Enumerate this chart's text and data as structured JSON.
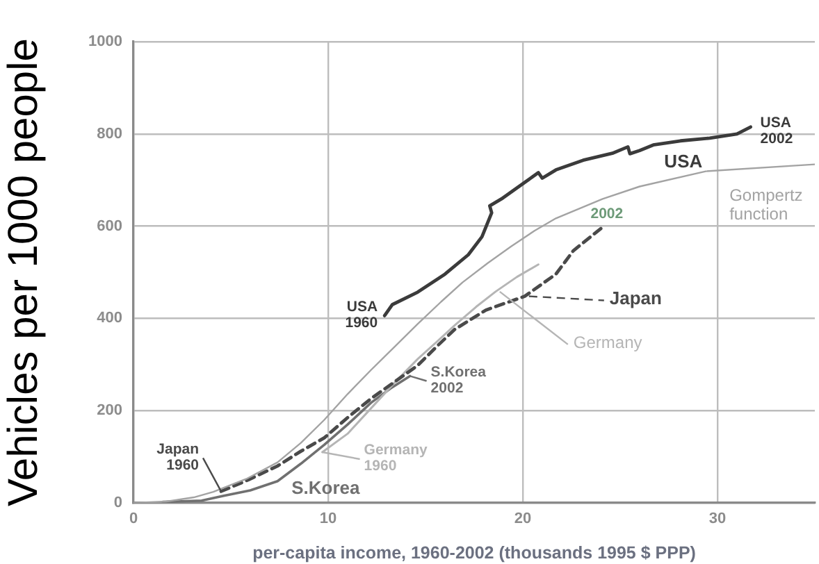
{
  "chart_data": {
    "type": "line",
    "xlabel": "per-capita income, 1960-2002 (thousands 1995 $ PPP)",
    "ylabel": "Vehicles per 1000 people",
    "xlim": [
      0,
      35
    ],
    "xticks": [
      0,
      10,
      20,
      30
    ],
    "ylim": [
      0,
      1000
    ],
    "yticks": [
      0,
      200,
      400,
      600,
      800,
      1000
    ],
    "grid": true,
    "marker": "none",
    "series": [
      {
        "name": "USA",
        "color": "#3b3b3b",
        "x": [
          12.9,
          13.3,
          14.6,
          16.0,
          17.2,
          17.9,
          18.4,
          18.3,
          18.9,
          19.7,
          20.5,
          20.8,
          21.0,
          21.7,
          23.1,
          24.6,
          25.4,
          25.5,
          26.0,
          26.7,
          28.1,
          29.6,
          31.0,
          31.7
        ],
        "values": [
          406,
          430,
          457,
          496,
          538,
          577,
          629,
          644,
          659,
          683,
          707,
          716,
          704,
          722,
          743,
          758,
          772,
          757,
          764,
          776,
          785,
          791,
          800,
          815
        ]
      },
      {
        "name": "Gompertz function",
        "color": "#a3a3a3",
        "x": [
          0,
          1.7,
          3.1,
          4.1,
          5.8,
          7.4,
          8.6,
          9.8,
          11,
          12.2,
          13.4,
          14.6,
          15.8,
          16.9,
          18.2,
          19.4,
          20.6,
          21.7,
          24.1,
          26,
          29.4,
          35
        ],
        "values": [
          0,
          3,
          12,
          24,
          52,
          88,
          130,
          180,
          236,
          288,
          338,
          388,
          436,
          478,
          520,
          556,
          590,
          617,
          659,
          686,
          719,
          734
        ]
      },
      {
        "name": "Japan",
        "color": "#4a4a4a",
        "line_style": "dashed",
        "x": [
          4.5,
          5.9,
          7.4,
          8.6,
          9.8,
          11,
          12.2,
          13.4,
          14.6,
          15.6,
          16.5,
          18.1,
          20.1,
          21.7,
          22.6,
          24.1
        ],
        "values": [
          25,
          50,
          80,
          112,
          141,
          185,
          226,
          262,
          298,
          340,
          376,
          418,
          448,
          496,
          547,
          598
        ]
      },
      {
        "name": "Germany",
        "color": "#b5b5b5",
        "x": [
          9.7,
          11,
          12.2,
          13.4,
          14.6,
          15.6,
          16.5,
          17.6,
          18.6,
          19.7,
          20.8
        ],
        "values": [
          110,
          150,
          205,
          260,
          312,
          350,
          385,
          425,
          458,
          490,
          517
        ]
      },
      {
        "name": "S.Korea",
        "color": "#707070",
        "x": [
          1.5,
          3.5,
          4.6,
          6,
          7.4,
          8.6,
          9.8,
          11,
          12.2,
          13.2,
          14.2
        ],
        "values": [
          2,
          5,
          15,
          27,
          47,
          85,
          126,
          170,
          217,
          248,
          275
        ]
      }
    ],
    "annotations": [
      {
        "text": "USA 2002",
        "x": 31.7,
        "y": 815
      },
      {
        "text": "USA 1960",
        "x": 12.9,
        "y": 406
      },
      {
        "text": "2002",
        "x": 24.1,
        "y": 598
      },
      {
        "text": "Japan 1960",
        "x": 4.5,
        "y": 25
      },
      {
        "text": "Germany 1960",
        "x": 9.7,
        "y": 110
      },
      {
        "text": "S.Korea 2002",
        "x": 14.2,
        "y": 275
      }
    ]
  }
}
